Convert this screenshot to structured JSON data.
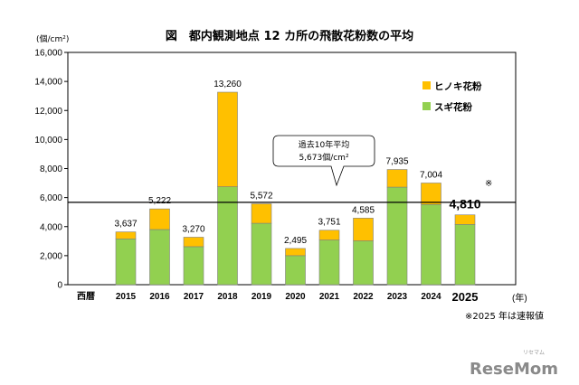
{
  "chart_data": {
    "type": "bar",
    "title": "図　都内観測地点 12 カ所の飛散花粉数の平均",
    "unit_label": "(個/cm²)",
    "x_prefix_label": "西暦",
    "x_suffix_label": "(年)",
    "categories": [
      "2015",
      "2016",
      "2017",
      "2018",
      "2019",
      "2020",
      "2021",
      "2022",
      "2023",
      "2024",
      "2025"
    ],
    "series": [
      {
        "name": "スギ花粉",
        "color": "#92d050",
        "values": [
          3150,
          3800,
          2620,
          6750,
          4230,
          2000,
          3080,
          3020,
          6720,
          5520,
          4150
        ]
      },
      {
        "name": "ヒノキ花粉",
        "color": "#ffc000",
        "values": [
          487,
          1422,
          650,
          6510,
          1342,
          495,
          671,
          1565,
          1215,
          1484,
          660
        ]
      }
    ],
    "totals": [
      "3,637",
      "5,222",
      "3,270",
      "13,260",
      "5,572",
      "2,495",
      "3,751",
      "4,585",
      "7,935",
      "7,004",
      "4,810"
    ],
    "ylim": [
      0,
      16000
    ],
    "yticks": [
      "0",
      "2,000",
      "4,000",
      "6,000",
      "8,000",
      "10,000",
      "12,000",
      "14,000",
      "16,000"
    ],
    "ytick_values": [
      0,
      2000,
      4000,
      6000,
      8000,
      10000,
      12000,
      14000,
      16000
    ],
    "grid": false,
    "legend_position": "top-right",
    "average": {
      "value": 5673,
      "line1": "過去10年平均",
      "line2": "5,673個/cm²"
    },
    "highlight_mark": "※",
    "note": "※2025 年は速報値"
  },
  "watermark": {
    "text": "ReseMom",
    "subtext": "リセマム"
  }
}
